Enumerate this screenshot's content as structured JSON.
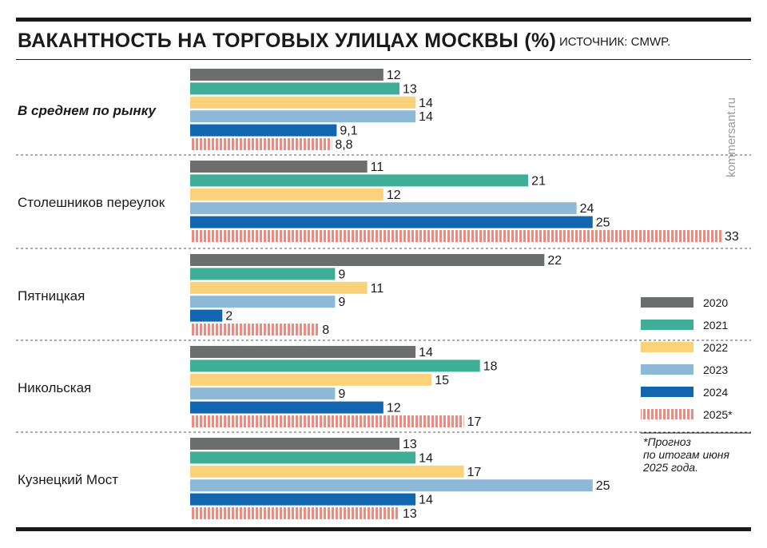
{
  "header": {
    "title": "ВАКАНТНОСТЬ НА ТОРГОВЫХ УЛИЦАХ МОСКВЫ (%)",
    "source": "ИСТОЧНИК: CMWP."
  },
  "watermark": "kommersant.ru",
  "colors": {
    "2020": "#6b6e6c",
    "2021": "#3fae96",
    "2022": "#fad27a",
    "2023": "#8db8d6",
    "2024": "#1266b0",
    "2025*": "#ef8a80"
  },
  "chart_data": {
    "type": "bar",
    "orientation": "horizontal",
    "categories": [
      "В среднем по рынку",
      "Столешников переулок",
      "Пятницкая",
      "Никольская",
      "Кузнецкий Мост"
    ],
    "series": [
      {
        "name": "2020",
        "values": [
          12,
          11,
          22,
          14,
          13
        ],
        "labels": [
          "12",
          "11",
          "22",
          "14",
          "13"
        ]
      },
      {
        "name": "2021",
        "values": [
          13,
          21,
          9,
          18,
          14
        ],
        "labels": [
          "13",
          "21",
          "9",
          "18",
          "14"
        ]
      },
      {
        "name": "2022",
        "values": [
          14,
          12,
          11,
          15,
          17
        ],
        "labels": [
          "14",
          "12",
          "11",
          "15",
          "17"
        ]
      },
      {
        "name": "2023",
        "values": [
          14,
          24,
          9,
          9,
          25
        ],
        "labels": [
          "14",
          "24",
          "9",
          "9",
          "25"
        ]
      },
      {
        "name": "2024",
        "values": [
          9.1,
          25,
          2,
          12,
          14
        ],
        "labels": [
          "9,1",
          "25",
          "2",
          "12",
          "14"
        ]
      },
      {
        "name": "2025*",
        "values": [
          8.8,
          33,
          8,
          17,
          13
        ],
        "labels": [
          "8,8",
          "33",
          "8",
          "17",
          "13"
        ],
        "pattern": "striped"
      }
    ],
    "xlim": [
      0,
      33
    ],
    "grid": false,
    "legend_position": "right"
  },
  "footnote": {
    "lines": [
      "*Прогноз",
      "по итогам июня",
      "2025 года."
    ]
  }
}
